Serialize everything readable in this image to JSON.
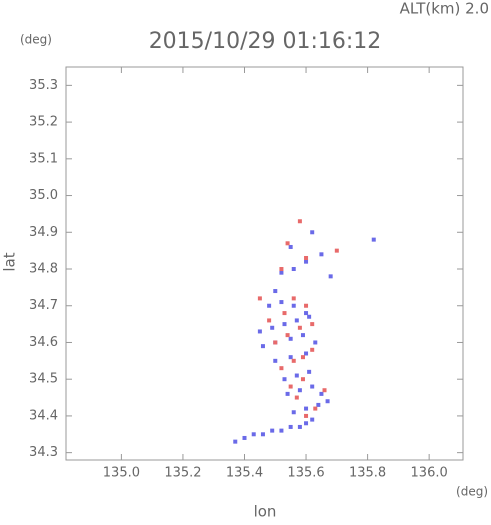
{
  "chart_data": {
    "type": "scatter",
    "title": "2015/10/29 01:16:12",
    "subtitle": "ALT(km) 2.0",
    "x_label": "lon",
    "y_label": "lat",
    "x_unit": "(deg)",
    "y_unit": "(deg)",
    "xlim": [
      134.82,
      136.11
    ],
    "ylim": [
      34.28,
      35.35
    ],
    "xticks": [
      {
        "value": 135.0,
        "label": "135.0"
      },
      135.2,
      135.4,
      135.6,
      135.8,
      {
        "value": 136.0,
        "label": "136.0"
      }
    ],
    "yticks": [
      35.3,
      35.2,
      35.1,
      {
        "value": 35.0,
        "label": "35.0"
      },
      34.9,
      34.8,
      34.7,
      34.6,
      34.5,
      34.4,
      34.3
    ],
    "series": [
      {
        "color": "#6a6ae8",
        "x": [
          135.37,
          135.4,
          135.43,
          135.46,
          135.49,
          135.52,
          135.55,
          135.58,
          135.6,
          135.62,
          135.56,
          135.6,
          135.64,
          135.67,
          135.54,
          135.58,
          135.62,
          135.65,
          135.53,
          135.57,
          135.61,
          135.5,
          135.55,
          135.6,
          135.46,
          135.5,
          135.55,
          135.59,
          135.63,
          135.49,
          135.53,
          135.57,
          135.61,
          135.48,
          135.52,
          135.56,
          135.6,
          135.52,
          135.56,
          135.6,
          135.65,
          135.68,
          135.82,
          135.55,
          135.62,
          135.45,
          135.5
        ],
        "values": [
          34.33,
          34.34,
          34.35,
          34.35,
          34.36,
          34.36,
          34.37,
          34.37,
          34.38,
          34.39,
          34.41,
          34.42,
          34.43,
          34.44,
          34.46,
          34.47,
          34.48,
          34.46,
          34.5,
          34.51,
          34.52,
          34.55,
          34.56,
          34.57,
          34.59,
          34.6,
          34.61,
          34.62,
          34.6,
          34.64,
          34.65,
          34.66,
          34.67,
          34.7,
          34.71,
          34.7,
          34.68,
          34.79,
          34.8,
          34.82,
          34.84,
          34.78,
          34.88,
          34.86,
          34.9,
          34.63,
          34.74
        ]
      },
      {
        "color": "#e86a6a",
        "x": [
          135.6,
          135.63,
          135.57,
          135.55,
          135.59,
          135.52,
          135.56,
          135.62,
          135.5,
          135.54,
          135.58,
          135.48,
          135.53,
          135.6,
          135.56,
          135.62,
          135.59,
          135.66,
          135.52,
          135.6,
          135.45,
          135.58,
          135.7,
          135.54
        ],
        "values": [
          34.4,
          34.42,
          34.45,
          34.48,
          34.5,
          34.53,
          34.55,
          34.58,
          34.6,
          34.62,
          34.64,
          34.66,
          34.68,
          34.7,
          34.72,
          34.65,
          34.56,
          34.47,
          34.8,
          34.83,
          34.72,
          34.93,
          34.85,
          34.87
        ]
      }
    ]
  }
}
